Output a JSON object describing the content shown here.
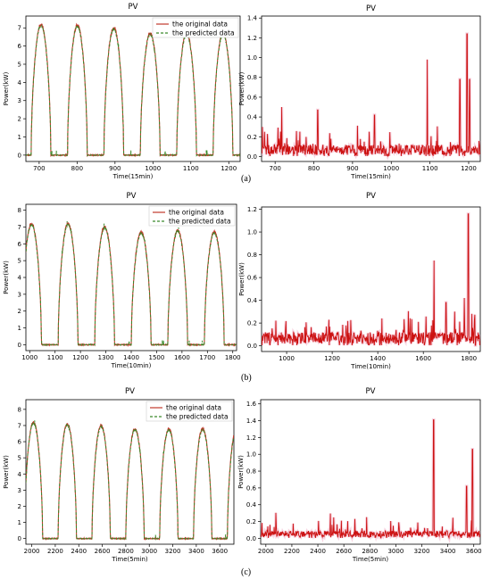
{
  "chart_data": [
    {
      "id": "a-left",
      "type": "line",
      "title": "PV",
      "xlabel": "Time(15min)",
      "ylabel": "Power(kW)",
      "xlim": [
        665,
        1230
      ],
      "ylim": [
        -0.35,
        7.65
      ],
      "xticks": [
        700,
        800,
        900,
        1000,
        1100,
        1200
      ],
      "yticks": [
        0,
        1,
        2,
        3,
        4,
        5,
        6,
        7
      ],
      "cycle": 96,
      "peak": 7.1,
      "grid": false,
      "legend": "top-right",
      "peaks": [
        7.2,
        7.15,
        7.0,
        6.7,
        6.7,
        6.7
      ],
      "series": [
        {
          "name": "the original data",
          "color": "#c0392b"
        },
        {
          "name": "the predicted data",
          "color": "#3a8a2a"
        }
      ]
    },
    {
      "id": "a-right",
      "type": "line",
      "title": "PV",
      "xlabel": "Time(15min)",
      "ylabel": "Power(kW)",
      "xlim": [
        665,
        1230
      ],
      "ylim": [
        -0.05,
        1.42
      ],
      "xticks": [
        700,
        800,
        900,
        1000,
        1100,
        1200
      ],
      "yticks": [
        0.0,
        0.2,
        0.4,
        0.6,
        0.8,
        1.0,
        1.2,
        1.4
      ],
      "base": 0.08,
      "spikes": [
        [
          717,
          0.5
        ],
        [
          810,
          0.47
        ],
        [
          957,
          0.42
        ],
        [
          1093,
          0.98
        ],
        [
          1177,
          0.78
        ],
        [
          1196,
          1.24
        ],
        [
          1202,
          0.78
        ]
      ],
      "color": "#cc1111"
    },
    {
      "id": "b-left",
      "type": "line",
      "title": "PV",
      "xlabel": "Time(10min)",
      "ylabel": "Power(kW)",
      "xlim": [
        985,
        1815
      ],
      "ylim": [
        -0.35,
        8.35
      ],
      "xticks": [
        1000,
        1100,
        1200,
        1300,
        1400,
        1500,
        1600,
        1700,
        1800
      ],
      "yticks": [
        0,
        1,
        2,
        3,
        4,
        5,
        6,
        7,
        8
      ],
      "cycle": 144,
      "peak": 7.15,
      "grid": false,
      "legend": "top-right",
      "peaks": [
        7.2,
        7.2,
        7.0,
        6.7,
        6.8,
        6.7
      ],
      "series": [
        {
          "name": "the original data",
          "color": "#c0392b"
        },
        {
          "name": "the predicted data",
          "color": "#3a8a2a"
        }
      ]
    },
    {
      "id": "b-right",
      "type": "line",
      "title": "PV",
      "xlabel": "Time(10min)",
      "ylabel": "Power(kW)",
      "xlim": [
        890,
        1850
      ],
      "ylim": [
        -0.05,
        1.22
      ],
      "xticks": [
        1000,
        1200,
        1400,
        1600,
        1800
      ],
      "yticks": [
        0.0,
        0.2,
        0.4,
        0.6,
        0.8,
        1.0,
        1.2
      ],
      "base": 0.08,
      "spikes": [
        [
          1647,
          0.75
        ],
        [
          1700,
          0.38
        ],
        [
          1780,
          0.42
        ],
        [
          1797,
          1.16
        ]
      ],
      "color": "#cc1111"
    },
    {
      "id": "c-left",
      "type": "line",
      "title": "PV",
      "xlabel": "Time(5min)",
      "ylabel": "Power(kW)",
      "xlim": [
        1950,
        3720
      ],
      "ylim": [
        -0.35,
        8.6
      ],
      "xticks": [
        2000,
        2200,
        2400,
        2600,
        2800,
        3000,
        3200,
        3400,
        3600
      ],
      "yticks": [
        0,
        1,
        2,
        3,
        4,
        5,
        6,
        7,
        8
      ],
      "cycle": 288,
      "peak": 7.0,
      "grid": false,
      "legend": "top-right",
      "peaks": [
        7.2,
        7.1,
        7.0,
        6.8,
        6.8,
        6.8
      ],
      "series": [
        {
          "name": "the original data",
          "color": "#c0392b"
        },
        {
          "name": "the predicted data",
          "color": "#3a8a2a"
        }
      ]
    },
    {
      "id": "c-right",
      "type": "line",
      "title": "PV",
      "xlabel": "Time(5min)",
      "ylabel": "Power(kW)",
      "xlim": [
        1960,
        3650
      ],
      "ylim": [
        -0.07,
        1.65
      ],
      "xticks": [
        2000,
        2200,
        2400,
        2600,
        2800,
        3000,
        3200,
        3400,
        3600
      ],
      "yticks": [
        0.0,
        0.2,
        0.4,
        0.6,
        0.8,
        1.0,
        1.2,
        1.4,
        1.6
      ],
      "base": 0.06,
      "spikes": [
        [
          3290,
          1.41
        ],
        [
          3545,
          0.62
        ],
        [
          3590,
          1.06
        ]
      ],
      "color": "#cc1111"
    }
  ],
  "captions": [
    "(a)",
    "(b)",
    "(c)"
  ]
}
